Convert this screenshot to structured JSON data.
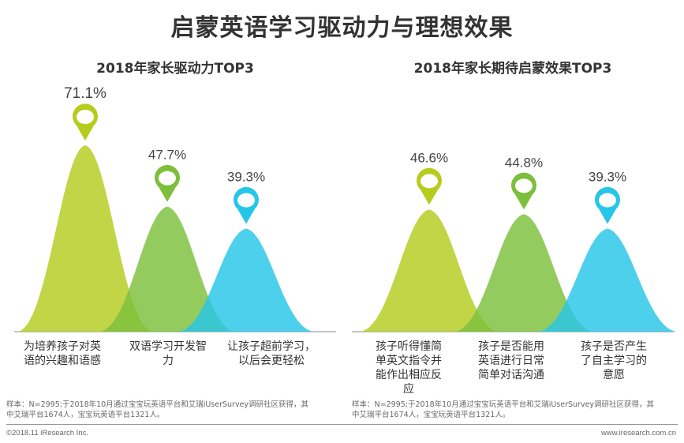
{
  "page_title": "启蒙英语学习驱动力与理想效果",
  "colors": {
    "lime": "#b5cc1e",
    "green": "#7dbf3c",
    "cyan": "#26c6e8"
  },
  "chart_data": [
    {
      "type": "area",
      "title": "2018年家长驱动力TOP3",
      "categories": [
        "为培养孩子对英语的兴趣和语感",
        "双语学习开发智力",
        "让孩子超前学习，以后会更轻松"
      ],
      "category_lines": [
        [
          "为培养孩子对英",
          "语的兴趣和语感"
        ],
        [
          "双语学习开发智",
          "力"
        ],
        [
          "让孩子超前学习，",
          "以后会更轻松"
        ]
      ],
      "values": [
        71.1,
        47.7,
        39.3
      ],
      "value_labels": [
        "71.1%",
        "47.7%",
        "39.3%"
      ],
      "ylim": [
        0,
        71.1
      ]
    },
    {
      "type": "area",
      "title": "2018年家长期待启蒙效果TOP3",
      "categories": [
        "孩子听得懂简单英文指令并能作出相应反应",
        "孩子是否能用英语进行日常简单对话沟通",
        "孩子是否产生了自主学习的意愿"
      ],
      "category_lines": [
        [
          "孩子听得懂简",
          "单英文指令并",
          "能作出相应反",
          "应"
        ],
        [
          "孩子是否能用",
          "英语进行日常",
          "简单对话沟通"
        ],
        [
          "孩子是否产生",
          "了自主学习的",
          "意愿"
        ]
      ],
      "values": [
        46.6,
        44.8,
        39.3
      ],
      "value_labels": [
        "46.6%",
        "44.8%",
        "39.3%"
      ],
      "ylim": [
        0,
        71.1
      ]
    }
  ],
  "notes": {
    "left": [
      "样本：N=2995;于2018年10月通过宝宝玩英语平台和艾瑞iUserSurvey调研社区获得，其",
      "中艾瑞平台1674人，宝宝玩英语平台1321人。"
    ],
    "right": [
      "样本：N=2995;于2018年10月通过宝宝玩英语平台和艾瑞iUserSurvey调研社区获得，其",
      "中艾瑞平台1674人，宝宝玩英语平台1321人。"
    ]
  },
  "footer": {
    "copyright": "©2018.11 iResearch Inc.",
    "website": "www.iresearch.com.cn"
  }
}
